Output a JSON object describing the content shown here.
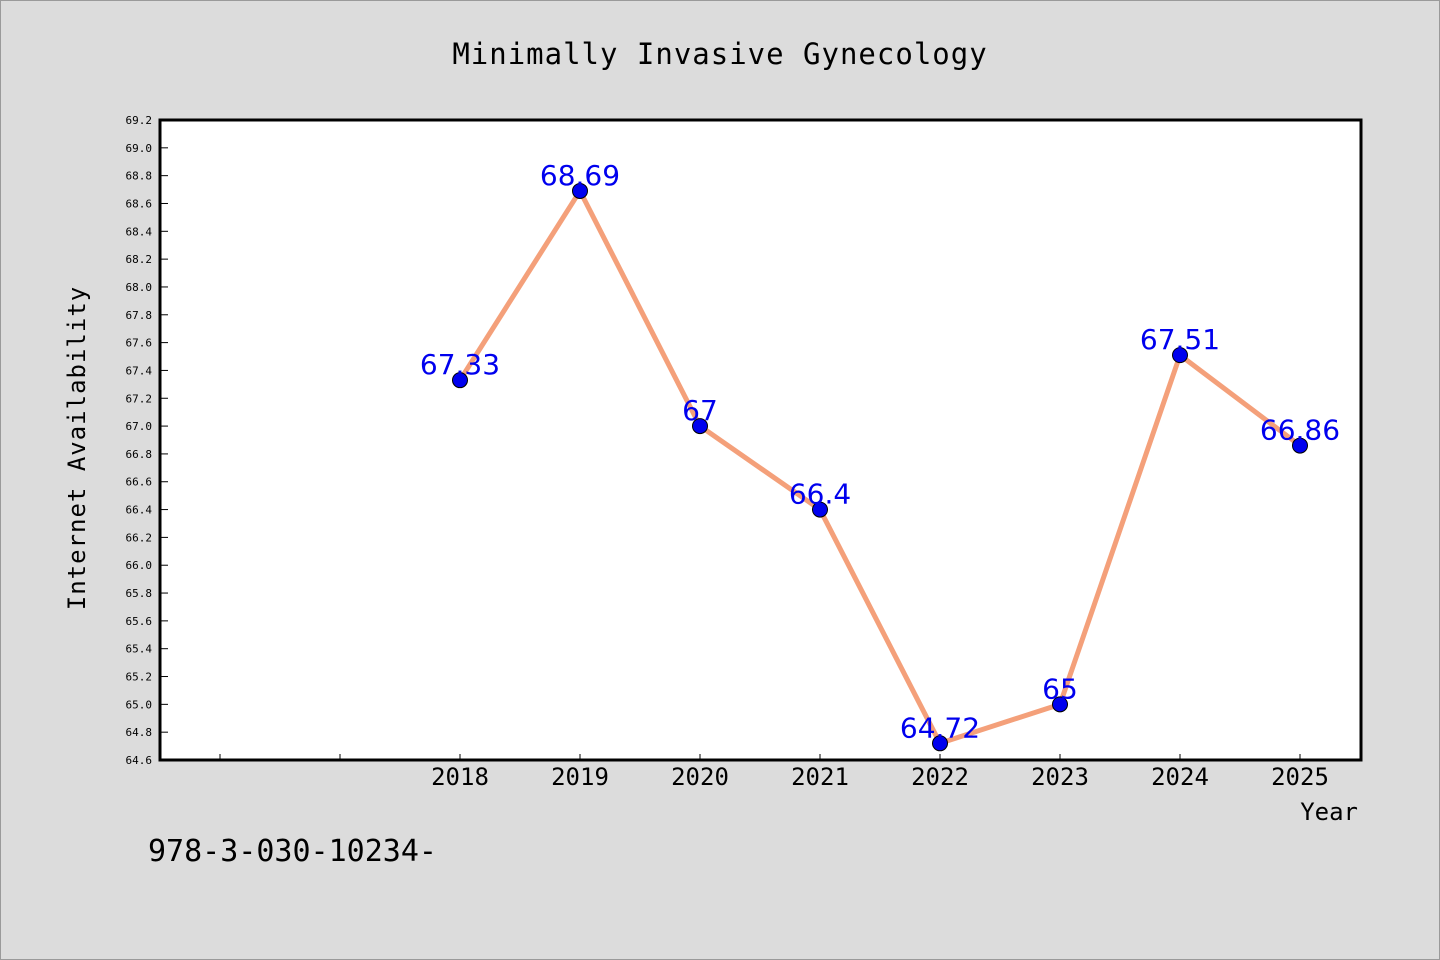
{
  "footer": "978-3-030-10234-",
  "chart_data": {
    "type": "line",
    "title": "Minimally Invasive Gynecology",
    "xlabel": "Year",
    "ylabel": "Internet Availability",
    "categories": [
      "",
      "",
      "2018",
      "2019",
      "2020",
      "2021",
      "2022",
      "2023",
      "2024",
      "2025"
    ],
    "series": [
      {
        "x": [
          "2018",
          "2019",
          "2020",
          "2021",
          "2022",
          "2023",
          "2024",
          "2025"
        ],
        "values": [
          67.33,
          68.69,
          67,
          66.4,
          64.72,
          65,
          67.51,
          66.86
        ],
        "labels": [
          "67.33",
          "68.69",
          "67",
          "66.4",
          "64.72",
          "65",
          "67.51",
          "66.86"
        ]
      }
    ],
    "ylim": [
      64.6,
      69.2
    ],
    "yticks": [
      "64.6",
      "64.8",
      "65.0",
      "65.2",
      "65.4",
      "65.6",
      "65.8",
      "66.0",
      "66.2",
      "66.4",
      "66.6",
      "66.8",
      "67.0",
      "67.2",
      "67.4",
      "67.6",
      "67.8",
      "68.0",
      "68.2",
      "68.4",
      "68.6",
      "68.8",
      "69.0",
      "69.2"
    ],
    "grid": false,
    "colors": {
      "line": "#f4a07a",
      "marker": "#0000ee",
      "label": "#0000ee"
    }
  }
}
